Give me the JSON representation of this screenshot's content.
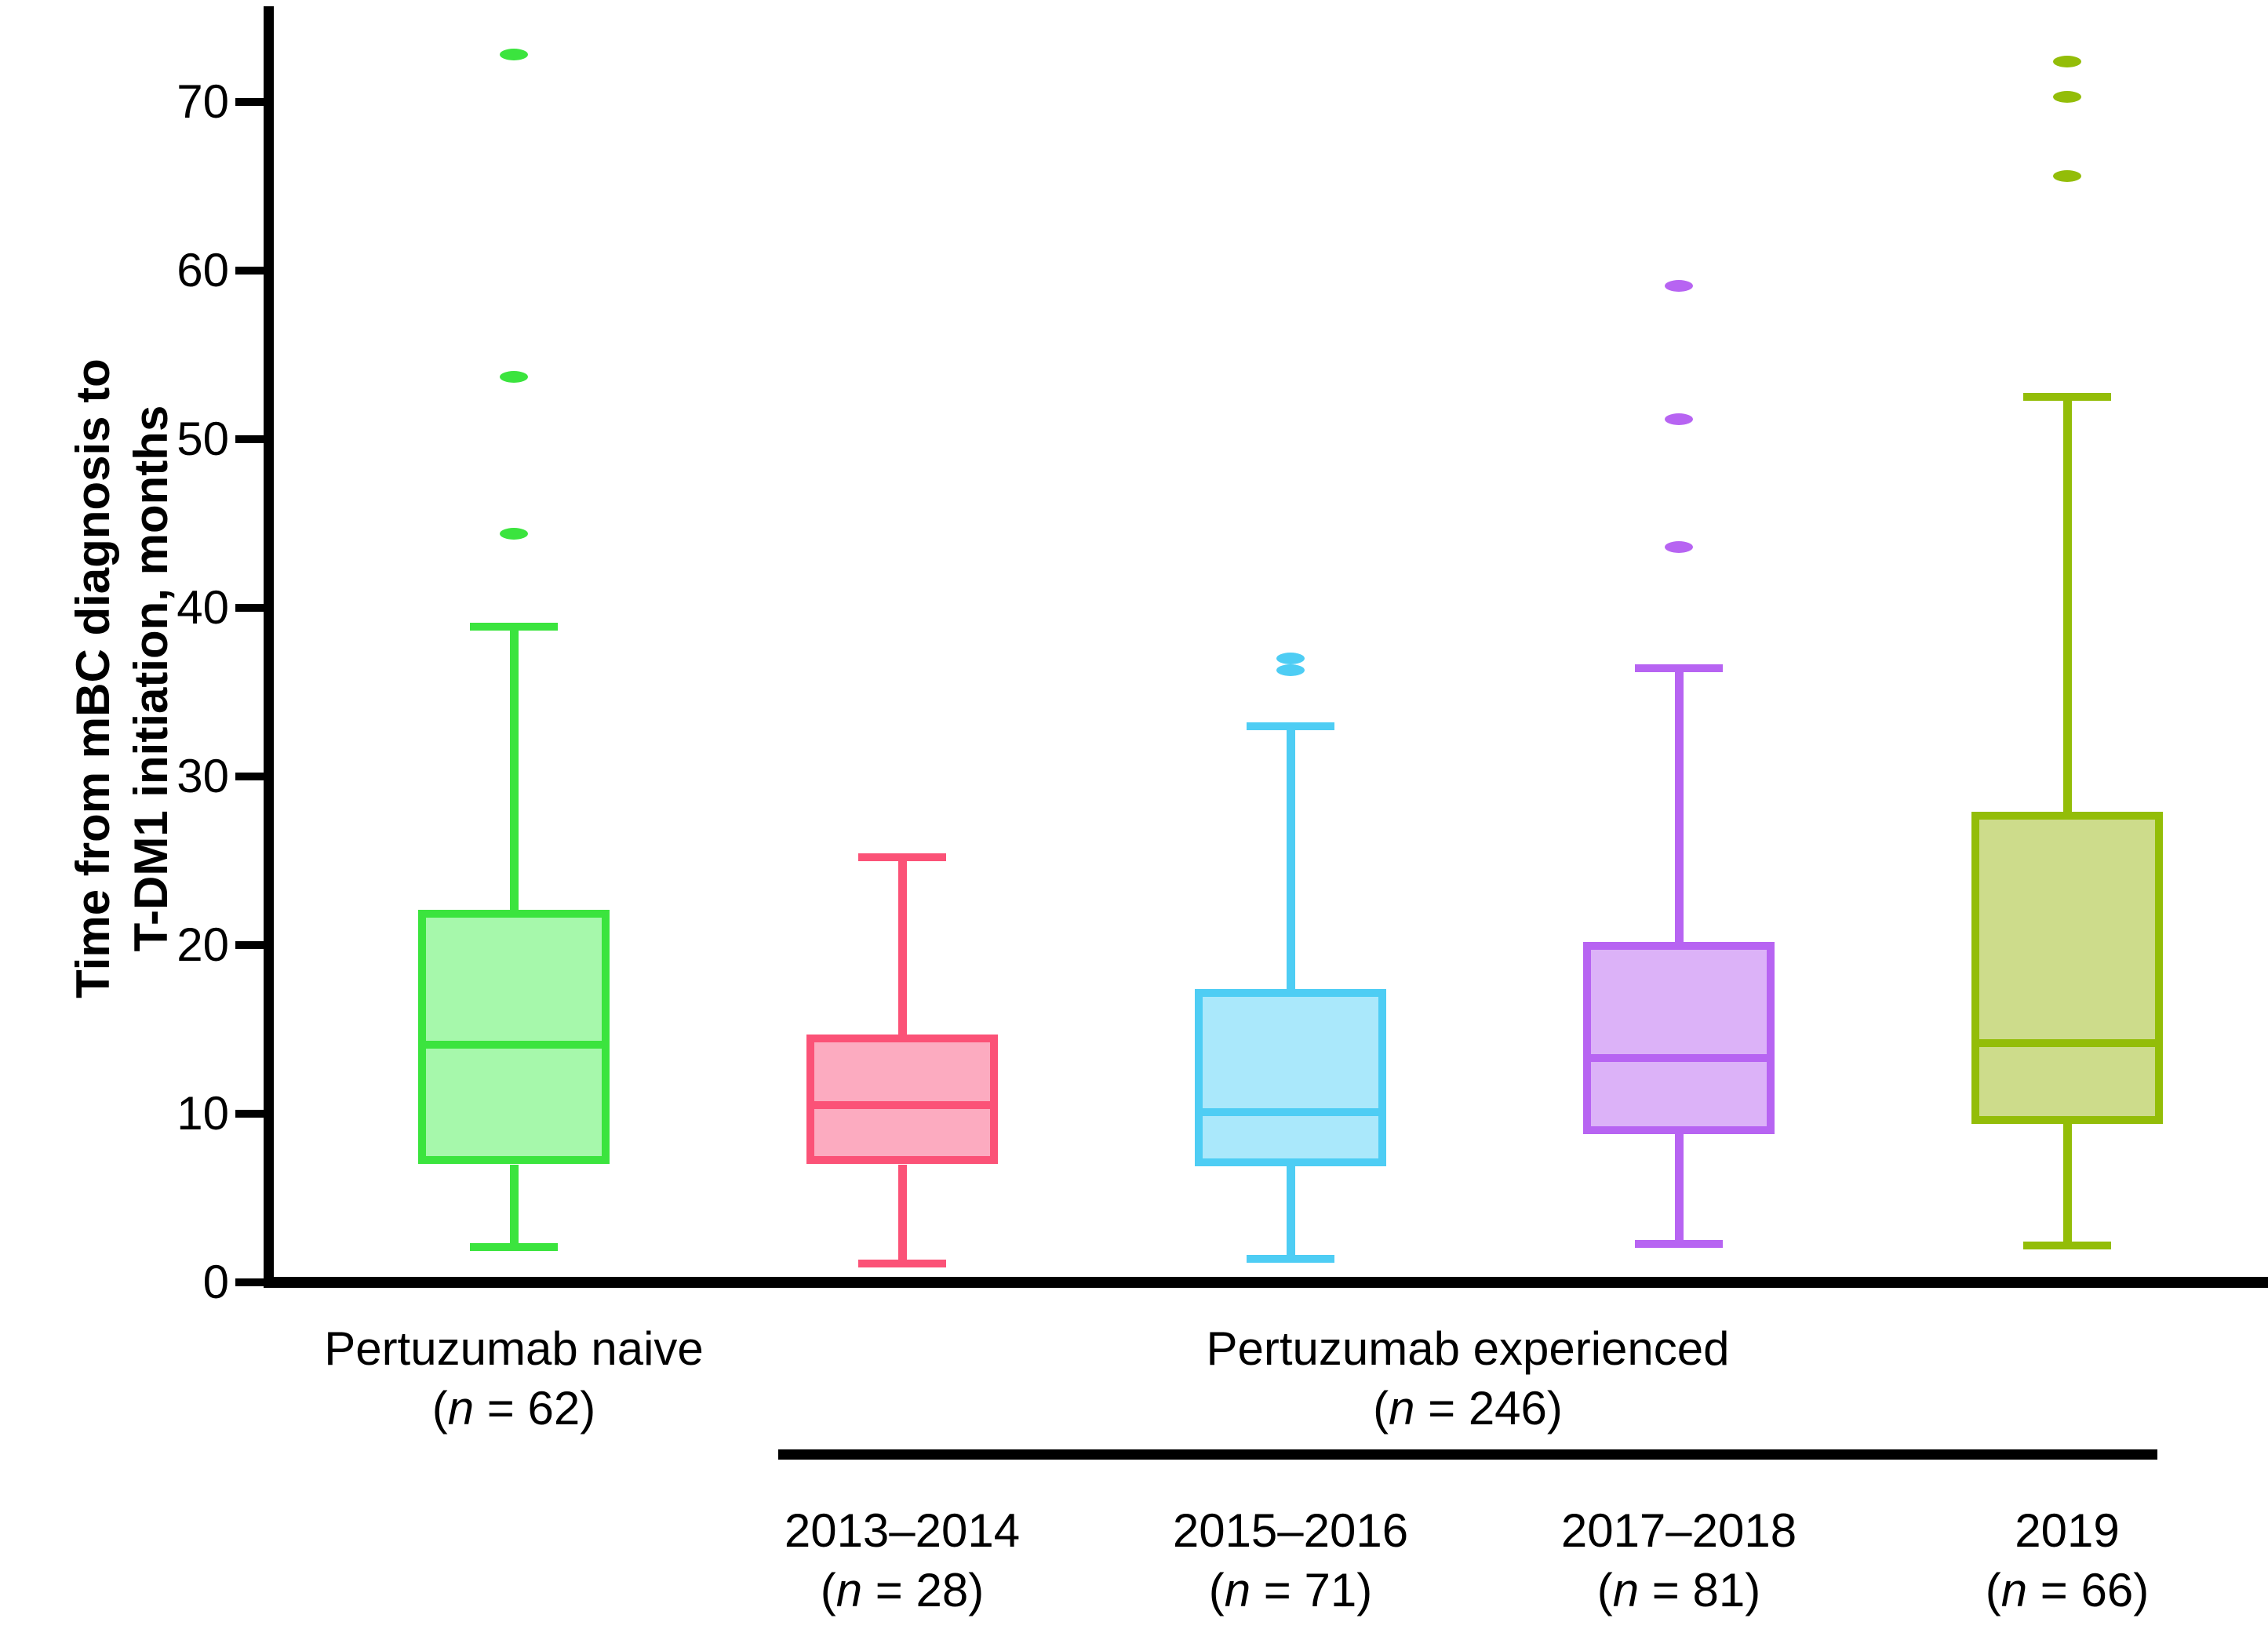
{
  "figure": {
    "ylabel_lines": [
      "Time from mBC diagnosis to",
      "T-DM1 initiation, months"
    ]
  },
  "chart_data": {
    "type": "boxplot",
    "title": "",
    "ylabel": "Time from mBC diagnosis to T-DM1 initiation, months",
    "xlabel": "",
    "ylim": [
      0,
      75.6
    ],
    "yticks": [
      0,
      10,
      20,
      30,
      40,
      50,
      60,
      70
    ],
    "grid": false,
    "legend_position": "none",
    "group_headers": [
      {
        "label": "Pertuzumab naive",
        "n": "62",
        "spans_groups": [
          0
        ],
        "underline": false
      },
      {
        "label": "Pertuzumab experienced",
        "n": "246",
        "spans_groups": [
          1,
          2,
          3,
          4
        ],
        "underline": true
      }
    ],
    "groups": [
      {
        "label": "Pertuzumab naive",
        "n": "62",
        "line_color": "#3be43e",
        "fill_color": "#a6f8ab",
        "whisker_min": 2.1,
        "q1": 7.0,
        "median": 14.1,
        "q3": 22.1,
        "whisker_max": 38.9,
        "outliers": [
          44.4,
          53.7,
          72.8
        ]
      },
      {
        "label": "2013–2014",
        "n": "28",
        "line_color": "#fb5277",
        "fill_color": "#fcabc0",
        "whisker_min": 1.1,
        "q1": 7.0,
        "median": 10.5,
        "q3": 14.7,
        "whisker_max": 25.2,
        "outliers": []
      },
      {
        "label": "2015–2016",
        "n": "71",
        "line_color": "#4ecdf4",
        "fill_color": "#aae8fb",
        "whisker_min": 1.4,
        "q1": 6.9,
        "median": 10.1,
        "q3": 17.4,
        "whisker_max": 33.0,
        "outliers": [
          36.3,
          37.0
        ]
      },
      {
        "label": "2017–2018",
        "n": "81",
        "line_color": "#b764f2",
        "fill_color": "#dcb2f8",
        "whisker_min": 2.3,
        "q1": 8.8,
        "median": 13.3,
        "q3": 20.2,
        "whisker_max": 36.4,
        "outliers": [
          43.6,
          51.2,
          59.1
        ]
      },
      {
        "label": "2019",
        "n": "66",
        "line_color": "#93bd08",
        "fill_color": "#cddc8b",
        "whisker_min": 2.2,
        "q1": 9.4,
        "median": 14.2,
        "q3": 27.9,
        "whisker_max": 52.5,
        "outliers": [
          65.6,
          70.3,
          72.4
        ]
      }
    ]
  }
}
